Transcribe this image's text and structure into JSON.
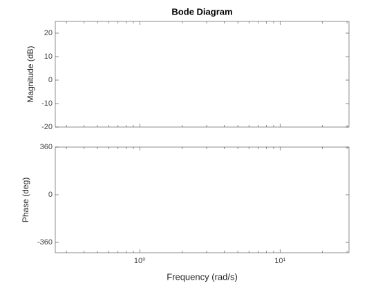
{
  "chart_data": [
    {
      "type": "line",
      "title": "Bode Diagram",
      "ylabel": "Magnitude (dB)",
      "xscale": "log",
      "xlim": [
        0.25,
        31
      ],
      "xticks": [
        1,
        10
      ],
      "xminorticks": [
        0.3,
        0.4,
        0.5,
        0.6,
        0.7,
        0.8,
        0.9,
        2,
        3,
        4,
        5,
        6,
        7,
        8,
        9,
        20,
        30
      ],
      "ylim": [
        -20,
        25
      ],
      "yticks": [
        -20,
        -10,
        0,
        10,
        20
      ],
      "series": []
    },
    {
      "type": "line",
      "ylabel": "Phase (deg)",
      "xlabel": "Frequency (rad/s)",
      "xscale": "log",
      "xlim": [
        0.25,
        31
      ],
      "xticks": [
        {
          "value": 1,
          "label": "10⁰"
        },
        {
          "value": 10,
          "label": "10¹"
        }
      ],
      "xminorticks": [
        0.3,
        0.4,
        0.5,
        0.6,
        0.7,
        0.8,
        0.9,
        2,
        3,
        4,
        5,
        6,
        7,
        8,
        9,
        20,
        30
      ],
      "ylim": [
        -438,
        360
      ],
      "yticks": [
        -360,
        0,
        360
      ],
      "series": []
    }
  ]
}
